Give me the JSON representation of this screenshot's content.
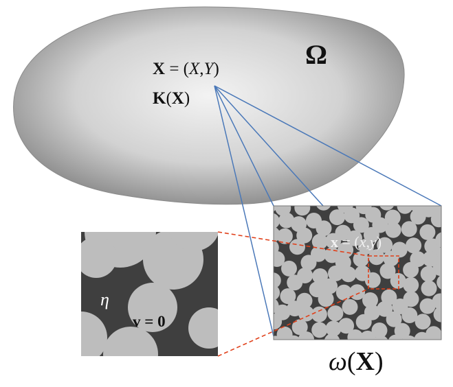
{
  "macro": {
    "domain_symbol": "Ω",
    "point_bold": "X",
    "point_rest": " = (",
    "point_x": "X",
    "point_comma": ",",
    "point_y": "Y",
    "point_close": ")",
    "tensor_bold": "K",
    "tensor_open": "(",
    "tensor_arg": "X",
    "tensor_close": ")"
  },
  "cell": {
    "local_bold": "x",
    "local_rest": " = (",
    "local_x": "x",
    "local_comma": ",",
    "local_y": "y",
    "local_close": ")",
    "caption_omega": "ω",
    "caption_open": "(",
    "caption_arg": "X",
    "caption_close": ")"
  },
  "zoom": {
    "fluid_symbol": "η",
    "velocity_bold": "v",
    "velocity_eq": " = 0"
  },
  "colors": {
    "matrix": "#3f3f3f",
    "grain": "#bdbdbd",
    "connector": "#4a78b8",
    "zoom_marker": "#e0401a",
    "domain_light": "#f2f2f2",
    "domain_dark": "#7a7a7a"
  }
}
